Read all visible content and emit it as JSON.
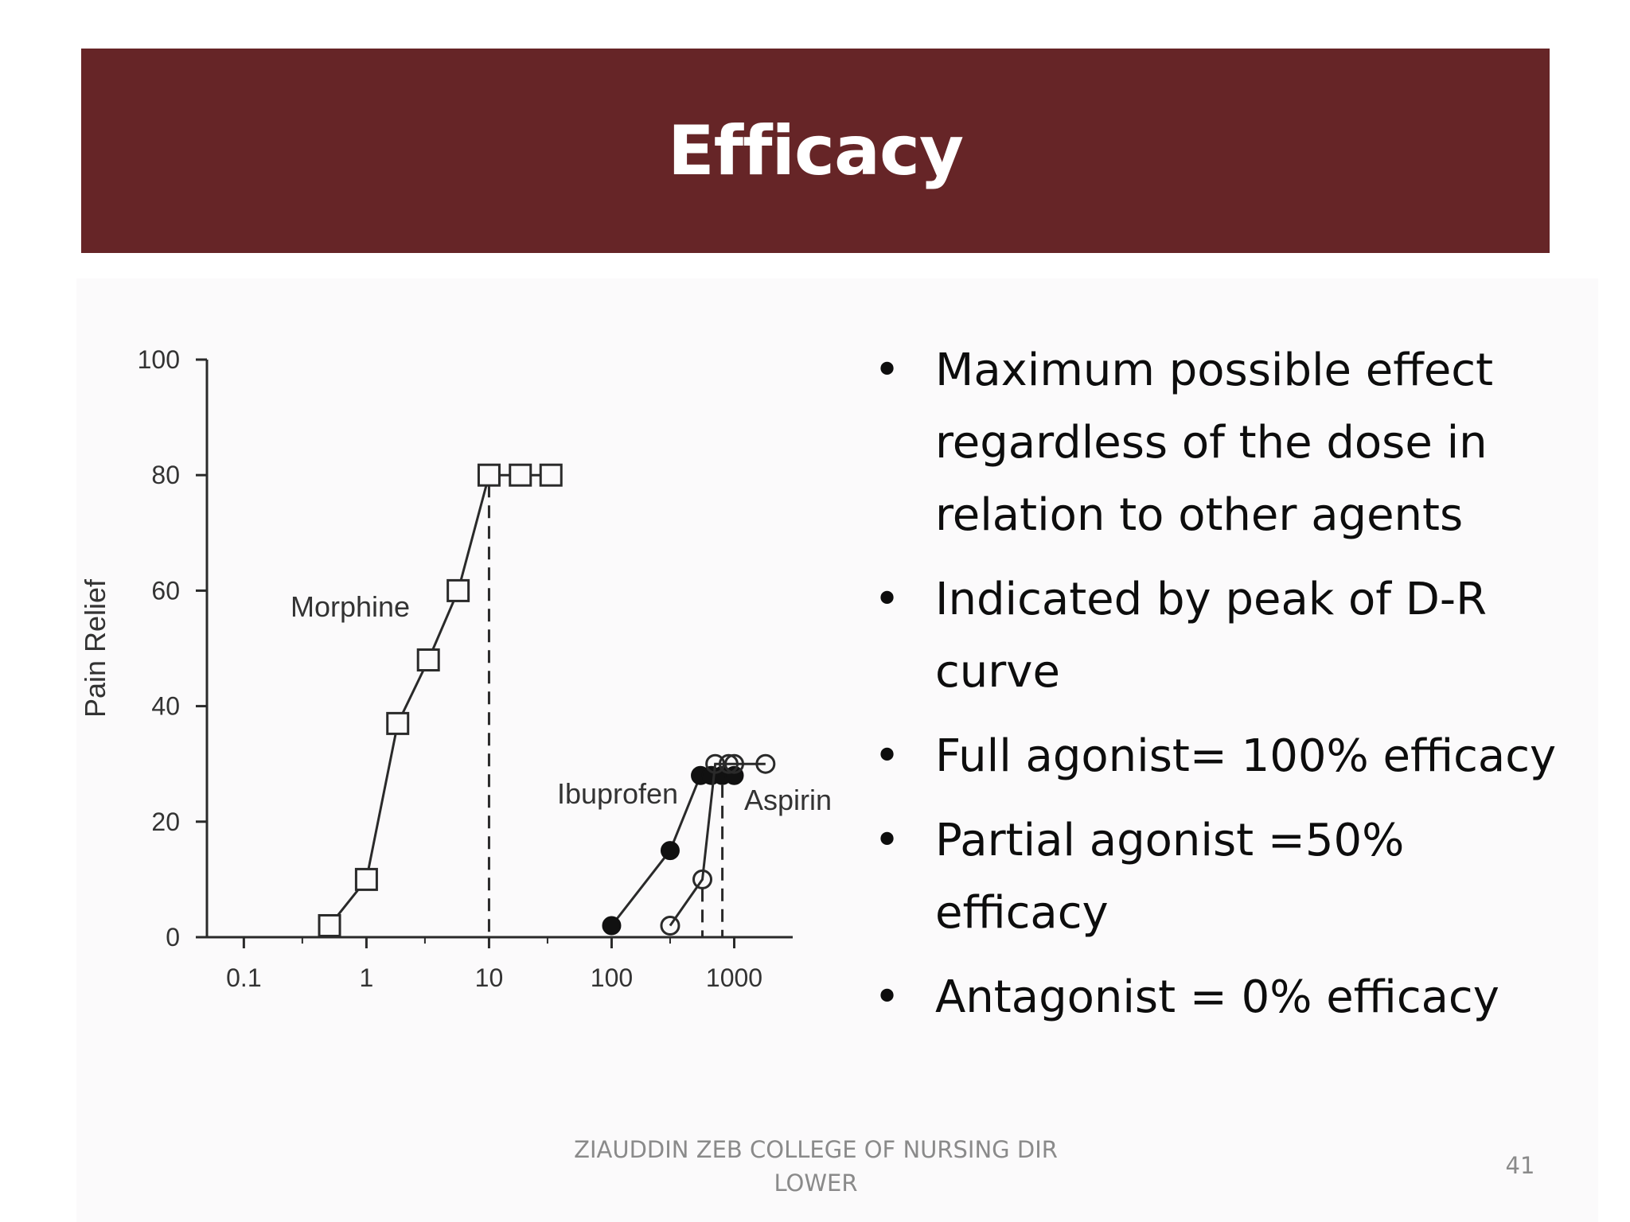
{
  "slide": {
    "title": "Efficacy",
    "bullets": [
      "Maximum possible effect regardless of the dose in relation to other agents",
      "Indicated by peak of D-R curve",
      "Full agonist= 100% efficacy",
      "Partial agonist =50% efficacy",
      "Antagonist = 0% efficacy"
    ],
    "footer": "ZIAUDDIN ZEB COLLEGE OF NURSING DIR LOWER",
    "page_number": "41",
    "colors": {
      "banner": "#662527",
      "axis": "#2a2a2a",
      "text": "#0d0d0d"
    }
  },
  "chart_data": {
    "type": "line",
    "ylabel": "Pain Relief",
    "x_scale": "log",
    "xlim": [
      0.05,
      3000
    ],
    "ylim": [
      0,
      100
    ],
    "x_ticks": [
      0.1,
      1,
      10,
      100,
      1000
    ],
    "x_tick_labels": [
      "0.1",
      "1",
      "10",
      "100",
      "1000"
    ],
    "y_ticks": [
      0,
      20,
      40,
      60,
      80,
      100
    ],
    "y_tick_labels": [
      "0",
      "20",
      "40",
      "60",
      "80",
      "100"
    ],
    "series": [
      {
        "name": "Morphine",
        "marker": "open-square",
        "points": [
          [
            0.5,
            2
          ],
          [
            1,
            10
          ],
          [
            1.8,
            37
          ],
          [
            3.2,
            48
          ],
          [
            5.6,
            60
          ],
          [
            10,
            80
          ],
          [
            18,
            80
          ],
          [
            32,
            80
          ]
        ]
      },
      {
        "name": "Ibuprofen",
        "marker": "filled-circle",
        "points": [
          [
            100,
            2
          ],
          [
            300,
            15
          ],
          [
            530,
            28
          ],
          [
            650,
            28
          ],
          [
            800,
            28
          ],
          [
            1000,
            28
          ]
        ]
      },
      {
        "name": "Aspirin",
        "marker": "open-circle",
        "points": [
          [
            300,
            2
          ],
          [
            550,
            10
          ],
          [
            700,
            30
          ],
          [
            900,
            30
          ],
          [
            1000,
            30
          ],
          [
            1800,
            30
          ]
        ]
      }
    ],
    "dashed_drops": [
      10,
      550,
      800
    ],
    "grid": false
  }
}
